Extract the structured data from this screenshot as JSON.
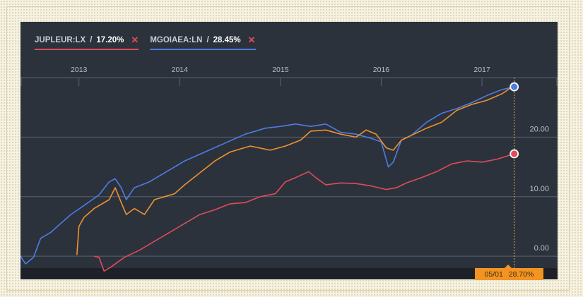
{
  "legend": [
    {
      "ticker": "JUPLEUR:LX",
      "value": "17.20%",
      "color": "#e14b5a"
    },
    {
      "ticker": "MGOIAEA:LN",
      "value": "28.45%",
      "color": "#4e7ce3"
    }
  ],
  "tooltip": {
    "date": "05/01",
    "value": "28.70%"
  },
  "chart_data": {
    "type": "line",
    "x_axis": {
      "ticks": [
        "2013",
        "2014",
        "2015",
        "2016",
        "2017"
      ],
      "range": [
        2012.42,
        2017.75
      ]
    },
    "y_axis": {
      "ticks": [
        "20.00",
        "10.00",
        "0.00"
      ],
      "tick_values": [
        20,
        10,
        0
      ],
      "range": [
        -2,
        30
      ]
    },
    "grid": true,
    "series": [
      {
        "name": "MGOIAEA:LN",
        "color": "#4e7ce3",
        "points": [
          [
            2012.42,
            0.0
          ],
          [
            2012.47,
            -1.3
          ],
          [
            2012.55,
            -0.2
          ],
          [
            2012.62,
            3.0
          ],
          [
            2012.72,
            4.0
          ],
          [
            2012.82,
            5.5
          ],
          [
            2012.92,
            7.0
          ],
          [
            2013.05,
            8.5
          ],
          [
            2013.2,
            10.3
          ],
          [
            2013.3,
            12.5
          ],
          [
            2013.36,
            13.0
          ],
          [
            2013.42,
            11.5
          ],
          [
            2013.47,
            9.5
          ],
          [
            2013.55,
            11.5
          ],
          [
            2013.7,
            12.5
          ],
          [
            2013.8,
            13.5
          ],
          [
            2013.9,
            14.5
          ],
          [
            2014.05,
            16.0
          ],
          [
            2014.25,
            17.5
          ],
          [
            2014.45,
            19.0
          ],
          [
            2014.65,
            20.5
          ],
          [
            2014.85,
            21.5
          ],
          [
            2015.0,
            21.8
          ],
          [
            2015.15,
            22.2
          ],
          [
            2015.3,
            21.8
          ],
          [
            2015.45,
            22.2
          ],
          [
            2015.6,
            20.8
          ],
          [
            2015.75,
            20.5
          ],
          [
            2015.9,
            19.8
          ],
          [
            2016.0,
            19.2
          ],
          [
            2016.07,
            15.0
          ],
          [
            2016.12,
            15.8
          ],
          [
            2016.2,
            19.5
          ],
          [
            2016.3,
            20.3
          ],
          [
            2016.45,
            22.5
          ],
          [
            2016.6,
            24.0
          ],
          [
            2016.75,
            24.8
          ],
          [
            2016.9,
            25.8
          ],
          [
            2017.05,
            27.0
          ],
          [
            2017.2,
            28.0
          ],
          [
            2017.32,
            28.45
          ]
        ]
      },
      {
        "name": "",
        "color": "#f0912c",
        "points": [
          [
            2012.98,
            0.2
          ],
          [
            2013.0,
            5.0
          ],
          [
            2013.05,
            6.5
          ],
          [
            2013.15,
            8.0
          ],
          [
            2013.3,
            9.5
          ],
          [
            2013.36,
            11.5
          ],
          [
            2013.42,
            9.0
          ],
          [
            2013.47,
            7.0
          ],
          [
            2013.55,
            8.0
          ],
          [
            2013.65,
            7.0
          ],
          [
            2013.75,
            9.5
          ],
          [
            2013.85,
            10.0
          ],
          [
            2013.95,
            10.5
          ],
          [
            2014.05,
            12.0
          ],
          [
            2014.2,
            14.0
          ],
          [
            2014.35,
            16.0
          ],
          [
            2014.5,
            17.5
          ],
          [
            2014.7,
            18.5
          ],
          [
            2014.9,
            17.8
          ],
          [
            2015.05,
            18.5
          ],
          [
            2015.2,
            19.5
          ],
          [
            2015.3,
            21.0
          ],
          [
            2015.45,
            21.2
          ],
          [
            2015.6,
            20.5
          ],
          [
            2015.75,
            20.0
          ],
          [
            2015.85,
            21.2
          ],
          [
            2015.95,
            20.5
          ],
          [
            2016.05,
            18.2
          ],
          [
            2016.12,
            17.8
          ],
          [
            2016.2,
            19.5
          ],
          [
            2016.3,
            20.3
          ],
          [
            2016.45,
            21.5
          ],
          [
            2016.6,
            22.5
          ],
          [
            2016.75,
            24.5
          ],
          [
            2016.9,
            25.5
          ],
          [
            2017.05,
            26.2
          ],
          [
            2017.2,
            27.3
          ],
          [
            2017.32,
            28.7
          ]
        ]
      },
      {
        "name": "JUPLEUR:LX",
        "color": "#e14b5a",
        "points": [
          [
            2013.15,
            0.0
          ],
          [
            2013.2,
            -0.2
          ],
          [
            2013.25,
            -2.5
          ],
          [
            2013.32,
            -1.8
          ],
          [
            2013.45,
            -0.2
          ],
          [
            2013.6,
            1.0
          ],
          [
            2013.75,
            2.5
          ],
          [
            2013.9,
            4.0
          ],
          [
            2014.05,
            5.5
          ],
          [
            2014.2,
            7.0
          ],
          [
            2014.35,
            7.8
          ],
          [
            2014.5,
            8.8
          ],
          [
            2014.65,
            9.0
          ],
          [
            2014.8,
            10.0
          ],
          [
            2014.95,
            10.5
          ],
          [
            2015.05,
            12.5
          ],
          [
            2015.15,
            13.2
          ],
          [
            2015.28,
            14.2
          ],
          [
            2015.35,
            13.2
          ],
          [
            2015.45,
            12.0
          ],
          [
            2015.6,
            12.3
          ],
          [
            2015.75,
            12.2
          ],
          [
            2015.9,
            11.8
          ],
          [
            2016.05,
            11.2
          ],
          [
            2016.15,
            11.5
          ],
          [
            2016.25,
            12.3
          ],
          [
            2016.4,
            13.2
          ],
          [
            2016.55,
            14.2
          ],
          [
            2016.7,
            15.5
          ],
          [
            2016.85,
            16.0
          ],
          [
            2017.0,
            15.8
          ],
          [
            2017.15,
            16.3
          ],
          [
            2017.32,
            17.2
          ]
        ]
      }
    ],
    "cursor": {
      "date": "05/01",
      "value": "28.70%"
    }
  }
}
